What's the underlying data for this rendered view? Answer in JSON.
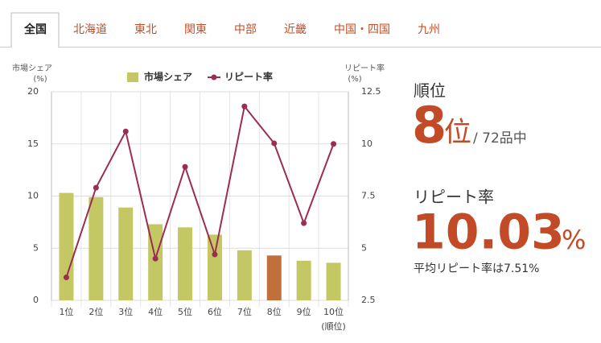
{
  "tabs": [
    "全国",
    "北海道",
    "東北",
    "関東",
    "中部",
    "近畿",
    "中国・四国",
    "九州"
  ],
  "active_tab": 0,
  "chart_data": {
    "type": "bar_line",
    "y_label": [
      "市場シェア",
      "(%)"
    ],
    "y2_label": [
      "リピート率",
      "(%)"
    ],
    "x_label": "(順位)",
    "categories": [
      "1位",
      "2位",
      "3位",
      "4位",
      "5位",
      "6位",
      "7位",
      "8位",
      "9位",
      "10位"
    ],
    "ylim": [
      0,
      20
    ],
    "yticks": [
      0,
      5,
      10,
      15,
      20
    ],
    "y2lim": [
      2.5,
      12.5
    ],
    "y2ticks": [
      2.5,
      5,
      7.5,
      10,
      12.5
    ],
    "grid": true,
    "series": [
      {
        "name": "市場シェア",
        "type": "bar",
        "color": "#c3c865",
        "highlight_index": 7,
        "highlight_color": "#c0703a",
        "values": [
          10.3,
          9.9,
          8.9,
          7.3,
          7.0,
          6.3,
          4.8,
          4.3,
          3.8,
          3.6
        ]
      },
      {
        "name": "リピート率",
        "type": "line",
        "axis": "y2",
        "color": "#9b2d50",
        "values": [
          3.6,
          7.9,
          10.6,
          4.5,
          8.9,
          4.7,
          11.8,
          10.03,
          6.2,
          10.0
        ]
      }
    ]
  },
  "stats": {
    "rank_label": "順位",
    "rank": "8",
    "rank_unit": "位",
    "rank_total": "/ 72品中",
    "rate_label": "リピート率",
    "rate": "10.03",
    "rate_unit": "%",
    "average": "平均リピート率は7.51%"
  }
}
